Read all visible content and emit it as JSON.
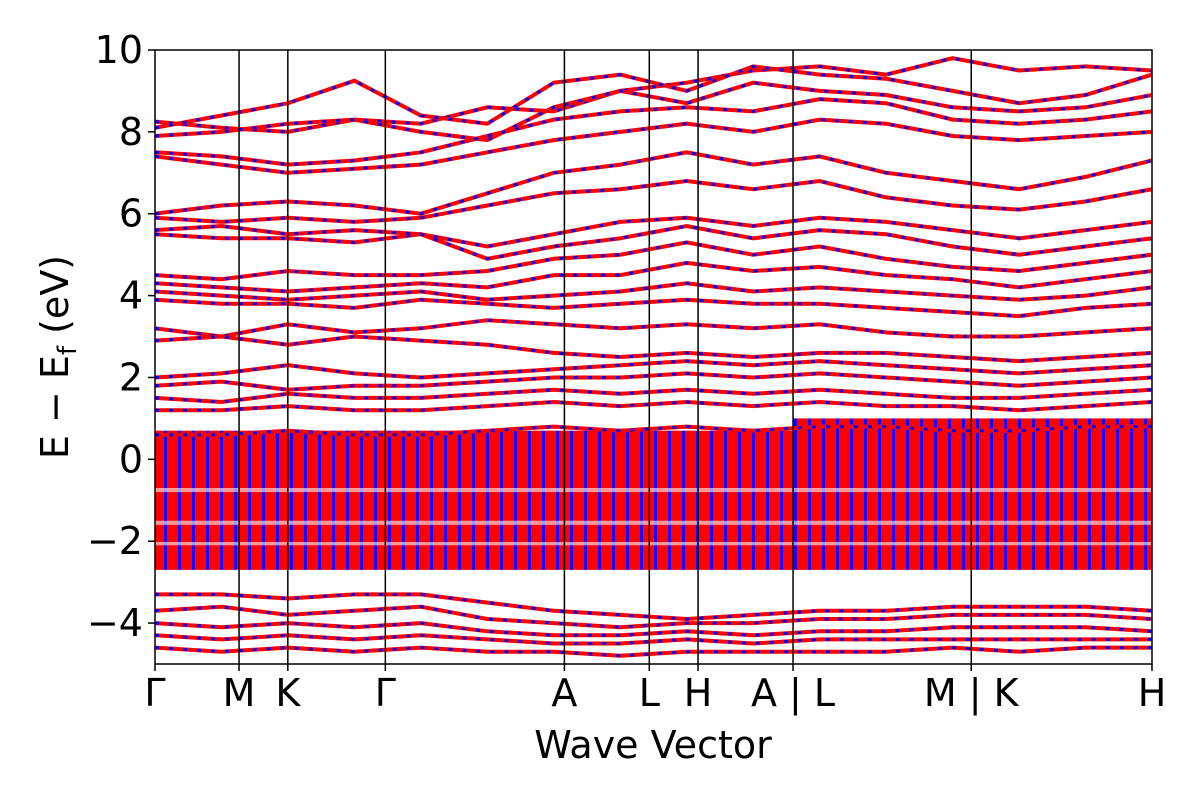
{
  "chart_data": {
    "type": "line",
    "title": "",
    "xlabel": "Wave Vector",
    "ylabel_main": "E − E",
    "ylabel_sub": "f",
    "ylabel_unit": " (eV)",
    "ylim": [
      -5,
      10
    ],
    "yticks": [
      "10",
      "8",
      "6",
      "4",
      "2",
      "0",
      "−2",
      "−4"
    ],
    "ytick_values": [
      10,
      8,
      6,
      4,
      2,
      0,
      -2,
      -4
    ],
    "kpath_positions": [
      0,
      1,
      1.58,
      2.74,
      4.87,
      5.88,
      6.46,
      7.59,
      9.71,
      11.86
    ],
    "kpath_labels": [
      "Γ",
      "M",
      "K",
      "Γ",
      "A",
      "L",
      "H",
      "A | L",
      "M | K",
      "H"
    ],
    "grid": false,
    "legend": "none",
    "series": [
      {
        "style": "dashed",
        "color": "#0000ff"
      },
      {
        "style": "solid",
        "color": "#ff0000"
      }
    ],
    "colors": {
      "band_solid": "#ff0000",
      "band_dashed": "#0000ff"
    },
    "bands_eV": [
      {
        "v": [
          8.25,
          8.1,
          8.0,
          8.3,
          8.2,
          8.6,
          8.5,
          9.0,
          9.2,
          9.5,
          9.6,
          9.4,
          9.8,
          9.5,
          9.6,
          9.5
        ]
      },
      {
        "v": [
          8.1,
          8.4,
          8.7,
          9.25,
          8.4,
          8.2,
          9.2,
          9.4,
          9.0,
          9.6,
          9.4,
          9.3,
          9.0,
          8.7,
          8.9,
          9.4
        ]
      },
      {
        "v": [
          7.9,
          8.0,
          8.2,
          8.3,
          8.0,
          7.8,
          8.6,
          9.0,
          8.7,
          9.2,
          9.0,
          8.9,
          8.6,
          8.5,
          8.6,
          8.9
        ]
      },
      {
        "v": [
          7.5,
          7.4,
          7.2,
          7.3,
          7.5,
          7.9,
          8.3,
          8.5,
          8.6,
          8.5,
          8.8,
          8.7,
          8.3,
          8.2,
          8.3,
          8.5
        ]
      },
      {
        "v": [
          7.4,
          7.2,
          7.0,
          7.1,
          7.2,
          7.5,
          7.8,
          8.0,
          8.2,
          8.0,
          8.3,
          8.2,
          7.9,
          7.8,
          7.9,
          8.0
        ]
      },
      {
        "v": [
          6.0,
          6.2,
          6.3,
          6.2,
          6.0,
          6.5,
          7.0,
          7.2,
          7.5,
          7.2,
          7.4,
          7.0,
          6.8,
          6.6,
          6.9,
          7.3
        ]
      },
      {
        "v": [
          5.9,
          5.8,
          5.9,
          5.8,
          5.9,
          6.2,
          6.5,
          6.6,
          6.8,
          6.6,
          6.8,
          6.4,
          6.2,
          6.1,
          6.3,
          6.6
        ]
      },
      {
        "v": [
          5.6,
          5.7,
          5.5,
          5.6,
          5.5,
          5.2,
          5.5,
          5.8,
          5.9,
          5.7,
          5.9,
          5.8,
          5.6,
          5.4,
          5.6,
          5.8
        ]
      },
      {
        "v": [
          5.5,
          5.4,
          5.4,
          5.3,
          5.5,
          4.9,
          5.2,
          5.4,
          5.7,
          5.4,
          5.6,
          5.5,
          5.2,
          5.0,
          5.2,
          5.4
        ]
      },
      {
        "v": [
          4.5,
          4.4,
          4.6,
          4.5,
          4.5,
          4.6,
          4.9,
          5.0,
          5.3,
          5.0,
          5.2,
          4.9,
          4.7,
          4.6,
          4.8,
          5.0
        ]
      },
      {
        "v": [
          4.3,
          4.2,
          4.1,
          4.2,
          4.3,
          4.2,
          4.5,
          4.5,
          4.8,
          4.6,
          4.7,
          4.5,
          4.4,
          4.2,
          4.4,
          4.6
        ]
      },
      {
        "v": [
          4.1,
          4.0,
          3.9,
          4.0,
          4.1,
          3.9,
          4.0,
          4.1,
          4.3,
          4.1,
          4.2,
          4.1,
          4.0,
          3.9,
          4.0,
          4.2
        ]
      },
      {
        "v": [
          3.9,
          3.8,
          3.8,
          3.7,
          3.9,
          3.8,
          3.7,
          3.8,
          3.9,
          3.8,
          3.8,
          3.7,
          3.6,
          3.5,
          3.7,
          3.8
        ]
      },
      {
        "v": [
          3.2,
          3.0,
          3.3,
          3.1,
          3.2,
          3.4,
          3.3,
          3.2,
          3.3,
          3.2,
          3.3,
          3.1,
          3.0,
          3.0,
          3.1,
          3.2
        ]
      },
      {
        "v": [
          2.9,
          3.0,
          2.8,
          3.0,
          2.9,
          2.8,
          2.6,
          2.5,
          2.6,
          2.5,
          2.6,
          2.6,
          2.5,
          2.4,
          2.5,
          2.6
        ]
      },
      {
        "v": [
          2.0,
          2.1,
          2.3,
          2.1,
          2.0,
          2.1,
          2.2,
          2.3,
          2.4,
          2.3,
          2.4,
          2.3,
          2.2,
          2.1,
          2.2,
          2.3
        ]
      },
      {
        "v": [
          1.8,
          1.9,
          1.7,
          1.8,
          1.8,
          1.9,
          2.0,
          2.0,
          2.1,
          2.0,
          2.1,
          2.0,
          1.9,
          1.8,
          1.9,
          2.0
        ]
      },
      {
        "v": [
          1.5,
          1.4,
          1.6,
          1.5,
          1.5,
          1.6,
          1.7,
          1.6,
          1.7,
          1.6,
          1.7,
          1.6,
          1.5,
          1.5,
          1.6,
          1.7
        ]
      },
      {
        "v": [
          1.2,
          1.2,
          1.3,
          1.2,
          1.2,
          1.3,
          1.4,
          1.3,
          1.4,
          1.3,
          1.4,
          1.3,
          1.3,
          1.2,
          1.3,
          1.4
        ]
      },
      {
        "v": [
          0.6,
          0.6,
          0.7,
          0.6,
          0.6,
          0.7,
          0.8,
          0.7,
          0.8,
          0.7,
          0.8,
          0.8,
          0.7,
          0.7,
          0.8,
          0.8
        ]
      },
      {
        "v": [
          -3.3,
          -3.3,
          -3.4,
          -3.3,
          -3.3,
          -3.5,
          -3.7,
          -3.8,
          -3.9,
          -3.8,
          -3.7,
          -3.7,
          -3.6,
          -3.6,
          -3.6,
          -3.7
        ]
      },
      {
        "v": [
          -3.7,
          -3.6,
          -3.8,
          -3.7,
          -3.6,
          -3.9,
          -4.0,
          -4.1,
          -4.0,
          -4.0,
          -3.9,
          -3.9,
          -3.8,
          -3.8,
          -3.8,
          -3.9
        ]
      },
      {
        "v": [
          -4.0,
          -4.1,
          -4.0,
          -4.1,
          -4.0,
          -4.2,
          -4.3,
          -4.3,
          -4.2,
          -4.3,
          -4.2,
          -4.2,
          -4.1,
          -4.1,
          -4.1,
          -4.2
        ]
      },
      {
        "v": [
          -4.3,
          -4.4,
          -4.3,
          -4.4,
          -4.3,
          -4.4,
          -4.5,
          -4.5,
          -4.4,
          -4.5,
          -4.4,
          -4.4,
          -4.4,
          -4.4,
          -4.4,
          -4.4
        ]
      },
      {
        "v": [
          -4.6,
          -4.7,
          -4.6,
          -4.7,
          -4.6,
          -4.7,
          -4.7,
          -4.8,
          -4.7,
          -4.7,
          -4.7,
          -4.7,
          -4.6,
          -4.7,
          -4.6,
          -4.6
        ]
      }
    ],
    "dense_region_eV": [
      -2.7,
      0.7
    ],
    "dense_region_right_eV": [
      -2.7,
      1.0
    ]
  }
}
